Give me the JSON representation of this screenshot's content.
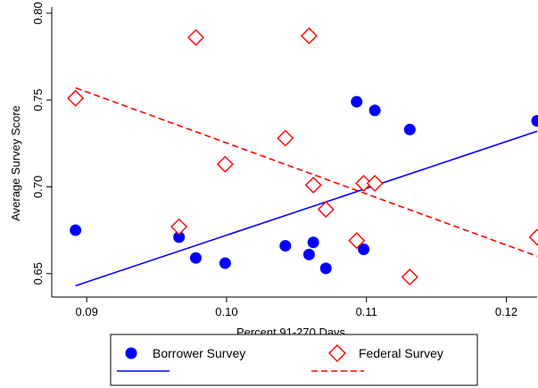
{
  "chart_data": {
    "type": "scatter",
    "title": "",
    "xlabel": "Percent 91-270 Days",
    "ylabel": "Average Survey Score",
    "xlim": [
      0.0875,
      0.1222
    ],
    "ylim": [
      0.6365,
      0.8035
    ],
    "xticks": [
      0.09,
      0.1,
      0.11,
      0.12
    ],
    "xtick_labels": [
      "0.09",
      "0.10",
      "0.11",
      "0.12"
    ],
    "yticks": [
      0.65,
      0.7,
      0.75,
      0.8
    ],
    "ytick_labels": [
      "0.65",
      "0.70",
      "0.75",
      "0.80"
    ],
    "grid": false,
    "legend_position": "bottom",
    "series": [
      {
        "name": "Borrower Survey",
        "marker": "circle",
        "color": "#0000ff",
        "points": [
          {
            "x": 0.0892,
            "y": 0.675
          },
          {
            "x": 0.0966,
            "y": 0.671
          },
          {
            "x": 0.0978,
            "y": 0.659
          },
          {
            "x": 0.0999,
            "y": 0.656
          },
          {
            "x": 0.1042,
            "y": 0.666
          },
          {
            "x": 0.1059,
            "y": 0.661
          },
          {
            "x": 0.1062,
            "y": 0.668
          },
          {
            "x": 0.1071,
            "y": 0.653
          },
          {
            "x": 0.1093,
            "y": 0.749
          },
          {
            "x": 0.1098,
            "y": 0.664
          },
          {
            "x": 0.1106,
            "y": 0.744
          },
          {
            "x": 0.1131,
            "y": 0.733
          },
          {
            "x": 0.1222,
            "y": 0.738
          }
        ],
        "fit": {
          "x": [
            0.0892,
            0.1222
          ],
          "y": [
            0.643,
            0.732
          ],
          "color": "#0000ff",
          "dash": "solid"
        }
      },
      {
        "name": "Federal Survey",
        "marker": "diamond",
        "color": "#ff0000",
        "points": [
          {
            "x": 0.0892,
            "y": 0.751
          },
          {
            "x": 0.0966,
            "y": 0.677
          },
          {
            "x": 0.0978,
            "y": 0.786
          },
          {
            "x": 0.0999,
            "y": 0.713
          },
          {
            "x": 0.1042,
            "y": 0.728
          },
          {
            "x": 0.1059,
            "y": 0.787
          },
          {
            "x": 0.1062,
            "y": 0.701
          },
          {
            "x": 0.1071,
            "y": 0.687
          },
          {
            "x": 0.1093,
            "y": 0.669
          },
          {
            "x": 0.1098,
            "y": 0.702
          },
          {
            "x": 0.1106,
            "y": 0.702
          },
          {
            "x": 0.1131,
            "y": 0.648
          },
          {
            "x": 0.1222,
            "y": 0.671
          }
        ],
        "fit": {
          "x": [
            0.0892,
            0.1222
          ],
          "y": [
            0.757,
            0.66
          ],
          "color": "#ff0000",
          "dash": "dashed"
        }
      }
    ]
  }
}
